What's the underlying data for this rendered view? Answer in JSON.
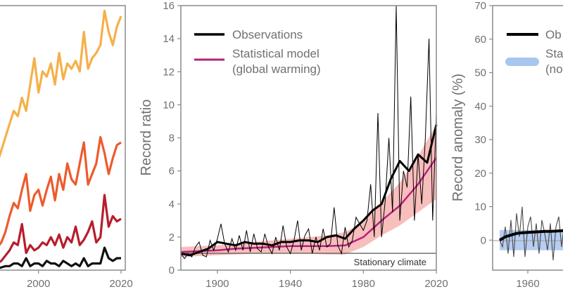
{
  "chart_data": [
    {
      "type": "line",
      "panel": "left (cropped)",
      "title": "",
      "xlabel": "",
      "ylabel": "",
      "x_ticks": [
        "2000",
        "2020"
      ],
      "xlim": [
        1990,
        2020
      ],
      "ylim": [
        0,
        100
      ],
      "series": [
        {
          "name": "yellow",
          "color": "#F5B04A",
          "x": [
            1990,
            1991,
            1992,
            1993,
            1994,
            1995,
            1996,
            1997,
            1998,
            1999,
            2000,
            2001,
            2002,
            2003,
            2004,
            2005,
            2006,
            2007,
            2008,
            2009,
            2010,
            2011,
            2012,
            2013,
            2014,
            2015,
            2016,
            2017,
            2018,
            2019,
            2020
          ],
          "values": [
            40,
            45,
            50,
            55,
            60,
            58,
            65,
            60,
            70,
            80,
            67,
            75,
            73,
            78,
            70,
            82,
            72,
            78,
            76,
            79,
            75,
            90,
            76,
            80,
            82,
            85,
            98,
            90,
            85,
            92,
            96
          ]
        },
        {
          "name": "orange",
          "color": "#EE5A2D",
          "x": [
            1990,
            1991,
            1992,
            1993,
            1994,
            1995,
            1996,
            1997,
            1998,
            1999,
            2000,
            2001,
            2002,
            2003,
            2004,
            2005,
            2006,
            2007,
            2008,
            2009,
            2010,
            2011,
            2012,
            2013,
            2014,
            2015,
            2016,
            2017,
            2018,
            2019,
            2020
          ],
          "values": [
            8,
            10,
            14,
            20,
            25,
            23,
            30,
            36,
            22,
            28,
            30,
            24,
            30,
            35,
            26,
            36,
            30,
            40,
            34,
            32,
            40,
            48,
            32,
            36,
            40,
            50,
            44,
            36,
            42,
            47,
            48
          ]
        },
        {
          "name": "red",
          "color": "#B81D2C",
          "x": [
            1990,
            1991,
            1992,
            1993,
            1994,
            1995,
            1996,
            1997,
            1998,
            1999,
            2000,
            2001,
            2002,
            2003,
            2004,
            2005,
            2006,
            2007,
            2008,
            2009,
            2010,
            2011,
            2012,
            2013,
            2014,
            2015,
            2016,
            2017,
            2018,
            2019,
            2020
          ],
          "values": [
            2,
            3,
            5,
            7,
            10,
            9,
            17,
            6,
            9,
            7,
            8,
            10,
            9,
            12,
            9,
            13,
            8,
            12,
            10,
            16,
            9,
            11,
            14,
            18,
            10,
            12,
            28,
            16,
            20,
            18,
            19
          ]
        },
        {
          "name": "black",
          "color": "#111111",
          "x": [
            1990,
            1991,
            1992,
            1993,
            1994,
            1995,
            1996,
            1997,
            1998,
            1999,
            2000,
            2001,
            2002,
            2003,
            2004,
            2005,
            2006,
            2007,
            2008,
            2009,
            2010,
            2011,
            2012,
            2013,
            2014,
            2015,
            2016,
            2017,
            2018,
            2019,
            2020
          ],
          "values": [
            0,
            0.5,
            1,
            1,
            2,
            2,
            1,
            4,
            1,
            2,
            2,
            1,
            3,
            2,
            2,
            1,
            3,
            2,
            1,
            2,
            1,
            4,
            1,
            2,
            2,
            2,
            8,
            4,
            3,
            4,
            4
          ]
        }
      ]
    },
    {
      "type": "line",
      "panel": "middle",
      "title": "",
      "xlabel": "",
      "ylabel": "Record ratio",
      "x_ticks": [
        "1900",
        "1940",
        "1980",
        "2020"
      ],
      "y_ticks": [
        "0",
        "2",
        "4",
        "6",
        "8",
        "10",
        "12",
        "14",
        "16"
      ],
      "xlim": [
        1880,
        2020
      ],
      "ylim": [
        0,
        16
      ],
      "legend": [
        "Observations",
        "Statistical model (global warming)"
      ],
      "legend_position": "top-left",
      "annotation": "Stationary climate",
      "reference_line": 1,
      "series": [
        {
          "name": "Observations (annual)",
          "color": "#000000",
          "x": [
            1880,
            1882,
            1884,
            1886,
            1888,
            1890,
            1892,
            1894,
            1896,
            1898,
            1900,
            1902,
            1904,
            1906,
            1908,
            1910,
            1912,
            1914,
            1916,
            1918,
            1920,
            1922,
            1924,
            1926,
            1928,
            1930,
            1932,
            1934,
            1936,
            1938,
            1940,
            1942,
            1944,
            1946,
            1948,
            1950,
            1952,
            1954,
            1956,
            1958,
            1960,
            1962,
            1964,
            1966,
            1968,
            1970,
            1972,
            1974,
            1976,
            1978,
            1980,
            1982,
            1984,
            1986,
            1988,
            1990,
            1992,
            1994,
            1996,
            1998,
            2000,
            2002,
            2004,
            2006,
            2008,
            2010,
            2012,
            2014,
            2016,
            2018,
            2020
          ],
          "values": [
            1,
            0.7,
            1,
            0.8,
            1.4,
            1.7,
            0.9,
            0.8,
            1.8,
            1.2,
            1.9,
            2.8,
            1.6,
            1.1,
            1.9,
            1.2,
            2.1,
            1.2,
            2.4,
            1.1,
            2.2,
            1.3,
            1.1,
            2.2,
            1.4,
            1,
            2,
            1.2,
            2.7,
            1.4,
            1,
            1.8,
            3,
            1.2,
            2.1,
            2.5,
            1,
            2,
            1.2,
            2.5,
            1.4,
            1.6,
            3.8,
            1.5,
            1,
            2.6,
            1.4,
            1.8,
            3.2,
            2.8,
            2.4,
            3,
            5.2,
            2,
            9.5,
            2,
            4.2,
            8,
            3.5,
            16,
            3,
            6,
            5,
            10.5,
            3,
            7,
            4,
            8,
            14,
            3,
            9.5
          ]
        },
        {
          "name": "Observations (smoothed)",
          "color": "#000000",
          "x": [
            1880,
            1885,
            1890,
            1895,
            1900,
            1905,
            1910,
            1915,
            1920,
            1925,
            1930,
            1935,
            1940,
            1945,
            1950,
            1955,
            1960,
            1965,
            1970,
            1975,
            1980,
            1985,
            1990,
            1995,
            2000,
            2005,
            2010,
            2015,
            2020
          ],
          "values": [
            1,
            0.9,
            1.1,
            1.3,
            1.7,
            1.6,
            1.5,
            1.7,
            1.6,
            1.6,
            1.5,
            1.7,
            1.7,
            1.8,
            1.8,
            1.7,
            2,
            2.1,
            1.9,
            2.5,
            3,
            3.6,
            4,
            5.5,
            6.6,
            6,
            7,
            6.5,
            8.8
          ]
        },
        {
          "name": "Statistical model (global warming)",
          "color": "#B5217E",
          "band_color": "#F6A8A6",
          "x": [
            1880,
            1890,
            1900,
            1910,
            1920,
            1930,
            1940,
            1950,
            1960,
            1970,
            1980,
            1990,
            2000,
            2010,
            2020
          ],
          "values": [
            1.1,
            1.15,
            1.2,
            1.3,
            1.35,
            1.4,
            1.45,
            1.45,
            1.45,
            1.5,
            2.0,
            3.0,
            3.9,
            5.2,
            6.8
          ],
          "band_lower": [
            0.8,
            0.85,
            0.9,
            0.95,
            1.0,
            1.05,
            1.05,
            1.0,
            0.95,
            0.95,
            1.4,
            2.1,
            2.7,
            3.5,
            4.3
          ],
          "band_upper": [
            1.4,
            1.45,
            1.5,
            1.6,
            1.7,
            1.8,
            1.9,
            2.0,
            2.1,
            2.3,
            2.9,
            4.1,
            5.3,
            6.9,
            8.8
          ]
        }
      ]
    },
    {
      "type": "line",
      "panel": "right (cropped)",
      "title": "",
      "xlabel": "",
      "ylabel": "Record anomaly (%)",
      "x_ticks": [
        "1960"
      ],
      "y_ticks": [
        "0",
        "10",
        "20",
        "30",
        "40",
        "50",
        "60",
        "70"
      ],
      "xlim": [
        1950,
        1980
      ],
      "ylim": [
        -10,
        70
      ],
      "legend": [
        "Ob",
        "Sta",
        "(no"
      ],
      "legend_position": "top-left",
      "series": [
        {
          "name": "Ob",
          "color": "#000000",
          "x": [
            1950,
            1952,
            1954,
            1956,
            1958,
            1960,
            1962,
            1964,
            1966,
            1968,
            1970,
            1972,
            1974,
            1976,
            1978,
            1980
          ],
          "values": [
            0,
            1,
            1.5,
            2,
            2.2,
            2.3,
            2.4,
            2.5,
            2.6,
            2.6,
            2.7,
            2.8,
            3.0,
            3.2,
            3.5,
            3.8
          ]
        },
        {
          "name": "annual",
          "color": "#4A4A4A",
          "x": [
            1950,
            1951,
            1952,
            1953,
            1954,
            1955,
            1956,
            1957,
            1958,
            1959,
            1960,
            1961,
            1962,
            1963,
            1964,
            1965,
            1966,
            1967,
            1968,
            1969,
            1970,
            1971,
            1972,
            1973,
            1974,
            1975,
            1976,
            1977,
            1978,
            1979,
            1980
          ],
          "values": [
            0,
            -2,
            4,
            -4,
            6,
            -5,
            8,
            1,
            10,
            -5,
            4,
            7,
            -2,
            5,
            -4,
            6,
            2,
            -3,
            5,
            -6,
            4,
            7,
            -2,
            5,
            -4,
            6,
            -7,
            5,
            8,
            -2,
            4
          ]
        },
        {
          "name": "Sta (no",
          "color": "#A9C6EE",
          "x": [
            1950,
            1980
          ],
          "values": [
            0,
            0
          ],
          "band_lower": [
            -3,
            -3
          ],
          "band_upper": [
            3,
            3
          ]
        }
      ]
    }
  ]
}
